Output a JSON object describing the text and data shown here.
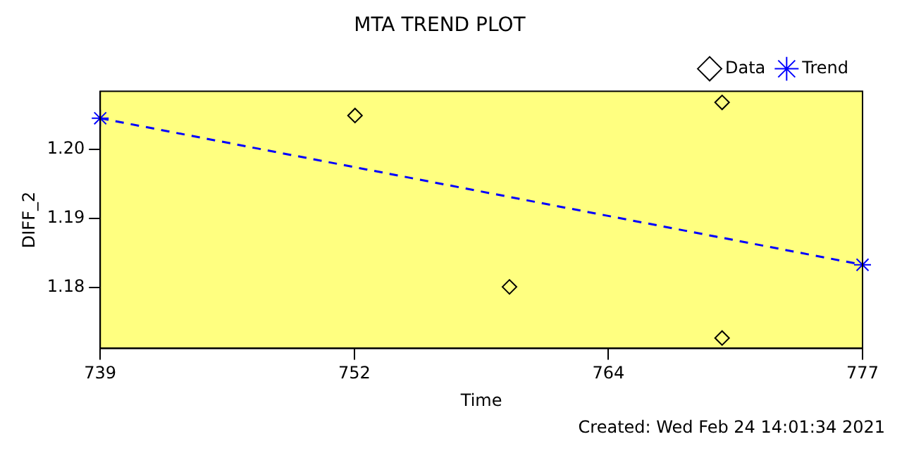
{
  "chart_data": {
    "type": "scatter",
    "title": "MTA TREND PLOT",
    "xlabel": "Time",
    "ylabel": "DIFF_2",
    "annotations": [
      "Created: Wed Feb 24 14:01:34 2021"
    ],
    "xlim": [
      739,
      777
    ],
    "xticks": [
      739,
      {
        "value": 751.667,
        "label": "752"
      },
      {
        "value": 764.333,
        "label": "764"
      },
      777
    ],
    "ylim": [
      1.1712,
      1.2084
    ],
    "yticks": [
      {
        "value": 1.18,
        "label": "1.18"
      },
      {
        "value": 1.19,
        "label": "1.19"
      },
      {
        "value": 1.2,
        "label": "1.20"
      }
    ],
    "grid": false,
    "legend": "top right",
    "series": [
      {
        "name": "Data",
        "type": "scatter",
        "marker": "diamond",
        "color": "#000000",
        "x": [
          751.7,
          759.4,
          770.0,
          770.0
        ],
        "values": [
          1.2049,
          1.1801,
          1.2068,
          1.1727
        ]
      },
      {
        "name": "Trend",
        "type": "line",
        "marker": "cross",
        "line_style": "dashed",
        "color": "#0000ff",
        "x": [
          739,
          777
        ],
        "values": [
          1.2045,
          1.1833
        ]
      }
    ]
  }
}
